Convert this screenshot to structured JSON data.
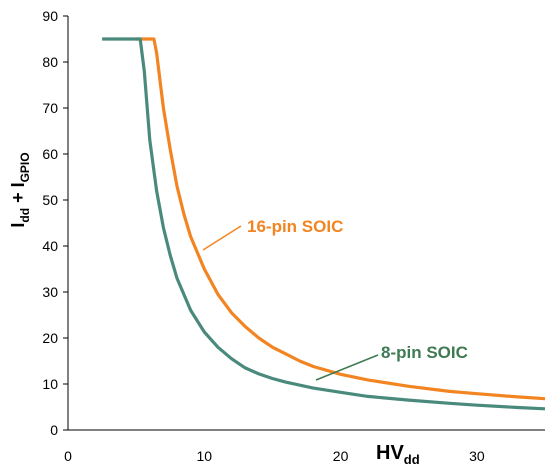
{
  "chart_data": {
    "type": "line",
    "title": "",
    "xlabel": {
      "main": "HV",
      "sub": "dd"
    },
    "ylabel": {
      "p1": "I",
      "s1": "dd",
      "mid": " + I",
      "s2": "GPIO"
    },
    "xlim": [
      0,
      35
    ],
    "ylim": [
      0,
      90
    ],
    "x_ticks": [
      0,
      10,
      20,
      30
    ],
    "y_ticks": [
      0,
      10,
      20,
      30,
      40,
      50,
      60,
      70,
      80,
      90
    ],
    "grid": false,
    "series": [
      {
        "name": "16-pin SOIC",
        "color": "#f28522",
        "x": [
          5,
          6.3,
          6.5,
          7,
          7.5,
          8,
          8.5,
          9,
          10,
          11,
          12,
          13,
          14,
          15,
          16,
          17,
          18,
          20,
          22,
          25,
          28,
          30,
          33,
          35
        ],
        "y": [
          85,
          85,
          82,
          70,
          61,
          53,
          47,
          42,
          35,
          29.5,
          25.5,
          22.5,
          20,
          18,
          16.5,
          15,
          13.8,
          12.1,
          10.9,
          9.5,
          8.4,
          7.9,
          7.2,
          6.8
        ]
      },
      {
        "name": "8-pin SOIC",
        "color": "#4a8a7c",
        "x": [
          2.5,
          5.3,
          5.6,
          6,
          6.5,
          7,
          7.5,
          8,
          9,
          10,
          11,
          12,
          13,
          14,
          15,
          16,
          18,
          20,
          22,
          25,
          28,
          30,
          33,
          35
        ],
        "y": [
          85,
          85,
          78,
          63,
          52,
          44,
          38,
          33,
          26,
          21.3,
          18,
          15.5,
          13.5,
          12.2,
          11.2,
          10.4,
          9.1,
          8.2,
          7.3,
          6.5,
          5.8,
          5.4,
          4.9,
          4.6
        ]
      }
    ],
    "annotations": [
      {
        "text": "16-pin SOIC",
        "color": "#f28522",
        "series": 0
      },
      {
        "text": "8-pin SOIC",
        "color": "#3f7a52",
        "series": 1
      }
    ]
  }
}
